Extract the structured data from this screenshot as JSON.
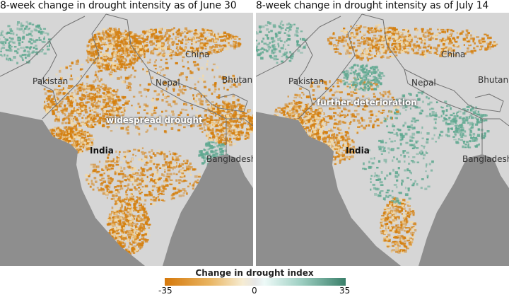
{
  "panels": [
    {
      "title": "8-week change in drought intensity as of June 30",
      "annotation": "widespread drought",
      "labels": {
        "china": "China",
        "pakistan": "Pakistan",
        "nepal": "Nepal",
        "bhutan": "Bhutan",
        "india": "India",
        "bangladesh": "Bangladesh"
      }
    },
    {
      "title": "8-week change in drought intensity as of July 14",
      "annotation": "further deterioration",
      "labels": {
        "china": "China",
        "pakistan": "Pakistan",
        "nepal": "Nepal",
        "bhutan": "Bhutan",
        "india": "India",
        "bangladesh": "Bangladesh"
      }
    }
  ],
  "legend": {
    "title": "Change in drought index",
    "min": "-35",
    "mid": "0",
    "max": "35",
    "colors": {
      "dry": "#d5780a",
      "neutral": "#e6e6e6",
      "wet": "#3a7f6a"
    }
  },
  "colors": {
    "sea": "#8e8e8e",
    "land": "#d6d6d6",
    "border": "#707070"
  }
}
